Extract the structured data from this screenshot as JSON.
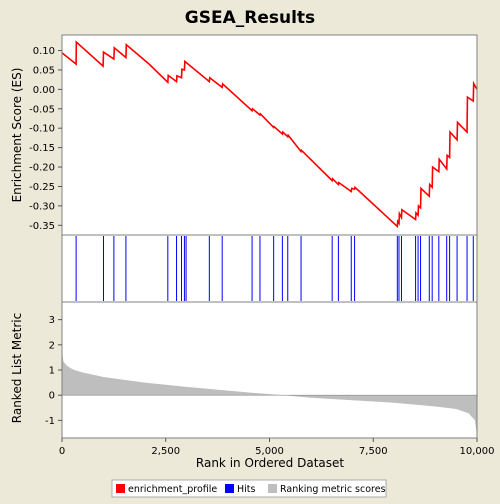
{
  "chart_data": {
    "type": "line",
    "title": "GSEA_Results",
    "ylabel_top": "Enrichment Score (ES)",
    "ylabel_bottom": "Ranked List Metric",
    "xlabel": "Rank in Ordered Dataset",
    "xlim": [
      0,
      10000
    ],
    "x_ticks": [
      0,
      2500,
      5000,
      7500,
      10000
    ],
    "x_tick_labels": [
      "0",
      "2,500",
      "5,000",
      "7,500",
      "10,000"
    ],
    "es_ylim": [
      -0.375,
      0.14
    ],
    "es_ticks": [
      0.1,
      0.05,
      0.0,
      -0.05,
      -0.1,
      -0.15,
      -0.2,
      -0.25,
      -0.3,
      -0.35
    ],
    "es_tick_labels": [
      "0.10",
      "0.05",
      "0.00",
      "-0.05",
      "-0.10",
      "-0.15",
      "-0.20",
      "-0.25",
      "-0.30",
      "-0.35"
    ],
    "metric_ylim": [
      -1.7,
      3.7
    ],
    "metric_ticks": [
      3,
      2,
      1,
      0,
      -1
    ],
    "metric_tick_labels": [
      "3",
      "2",
      "1",
      "0",
      "-1"
    ],
    "series": [
      {
        "name": "enrichment_profile",
        "color": "#ff0000",
        "x": [
          0,
          340,
          345,
          990,
          1000,
          1250,
          1260,
          1540,
          1550,
          2100,
          2550,
          2560,
          2760,
          2770,
          2880,
          2890,
          2950,
          2960,
          3550,
          3560,
          3860,
          3870,
          4580,
          4590,
          4770,
          4780,
          5100,
          5110,
          5310,
          5320,
          5440,
          5450,
          5760,
          5770,
          6510,
          6520,
          6660,
          6670,
          6970,
          6980,
          7050,
          7060,
          8080,
          8090,
          8120,
          8130,
          8180,
          8190,
          8520,
          8530,
          8580,
          8590,
          8640,
          8650,
          8850,
          8860,
          8920,
          8930,
          9080,
          9090,
          9270,
          9280,
          9340,
          9350,
          9520,
          9530,
          9760,
          9770,
          9910,
          9920,
          10000
        ],
        "y": [
          0.094,
          0.065,
          0.122,
          0.06,
          0.096,
          0.078,
          0.107,
          0.082,
          0.115,
          0.065,
          0.018,
          0.036,
          0.02,
          0.035,
          0.03,
          0.052,
          0.05,
          0.072,
          0.02,
          0.03,
          0.005,
          0.014,
          -0.055,
          -0.05,
          -0.066,
          -0.063,
          -0.098,
          -0.096,
          -0.115,
          -0.11,
          -0.122,
          -0.118,
          -0.16,
          -0.157,
          -0.235,
          -0.23,
          -0.245,
          -0.24,
          -0.263,
          -0.255,
          -0.257,
          -0.252,
          -0.353,
          -0.34,
          -0.345,
          -0.32,
          -0.33,
          -0.31,
          -0.335,
          -0.318,
          -0.324,
          -0.3,
          -0.305,
          -0.255,
          -0.275,
          -0.245,
          -0.252,
          -0.2,
          -0.212,
          -0.18,
          -0.205,
          -0.17,
          -0.175,
          -0.11,
          -0.13,
          -0.085,
          -0.11,
          -0.02,
          -0.03,
          0.015,
          0.0
        ]
      }
    ],
    "hits": {
      "name": "Hits",
      "color": "#0000ff",
      "positions": [
        340,
        1000,
        1250,
        1540,
        2550,
        2760,
        2880,
        2950,
        2990,
        3550,
        3860,
        4580,
        4770,
        5100,
        5310,
        5440,
        5760,
        6510,
        6660,
        6970,
        7050,
        8080,
        8120,
        8180,
        8520,
        8580,
        8640,
        8850,
        8920,
        9080,
        9270,
        9340,
        9520,
        9760,
        9910
      ]
    },
    "ranking_metric": {
      "name": "Ranking metric scores",
      "color": "#bebebe",
      "x": [
        0,
        30,
        100,
        200,
        300,
        500,
        1000,
        2000,
        3000,
        4000,
        5000,
        5300,
        6000,
        7000,
        8000,
        9000,
        9500,
        9800,
        9950,
        10000
      ],
      "values": [
        1.8,
        1.35,
        1.2,
        1.08,
        1.0,
        0.9,
        0.72,
        0.5,
        0.33,
        0.18,
        0.04,
        0.0,
        -0.1,
        -0.2,
        -0.3,
        -0.45,
        -0.55,
        -0.72,
        -1.0,
        -1.6
      ]
    },
    "legend": {
      "placement": "bottom-center",
      "items": [
        {
          "label": "enrichment_profile",
          "color": "#ff0000"
        },
        {
          "label": "Hits",
          "color": "#0000ff"
        },
        {
          "label": "Ranking metric scores",
          "color": "#bebebe"
        }
      ]
    }
  }
}
